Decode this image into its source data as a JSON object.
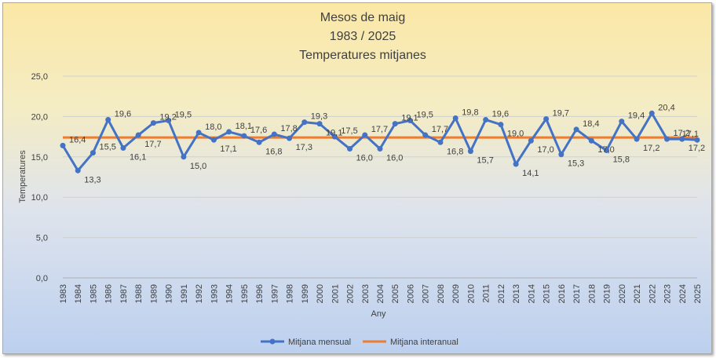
{
  "chart_data": {
    "type": "line",
    "title_lines": [
      "Mesos de maig",
      "1983 / 2025",
      "Temperatures mitjanes"
    ],
    "xlabel": "Any",
    "ylabel": "Temperatures",
    "ylim": [
      0,
      25
    ],
    "yticks": [
      "0,0",
      "5,0",
      "10,0",
      "15,0",
      "20,0",
      "25,0"
    ],
    "grid": true,
    "legend_position": "bottom",
    "categories": [
      "1983",
      "1984",
      "1985",
      "1986",
      "1987",
      "1988",
      "1989",
      "1990",
      "1991",
      "1992",
      "1993",
      "1994",
      "1995",
      "1996",
      "1997",
      "1998",
      "1999",
      "2000",
      "2001",
      "2002",
      "2003",
      "2004",
      "2005",
      "2006",
      "2007",
      "2008",
      "2009",
      "2010",
      "2011",
      "2012",
      "2013",
      "2014",
      "2015",
      "2016",
      "2017",
      "2018",
      "2019",
      "2020",
      "2021",
      "2022",
      "2023",
      "2024",
      "2025"
    ],
    "series": [
      {
        "name": "Mitjana mensual",
        "color": "#4472c4",
        "values": [
          16.4,
          13.3,
          15.5,
          19.6,
          16.1,
          17.7,
          19.2,
          19.5,
          15.0,
          18.0,
          17.1,
          18.1,
          17.6,
          16.8,
          17.8,
          17.3,
          19.3,
          19.1,
          17.5,
          16.0,
          17.7,
          16.0,
          19.1,
          19.5,
          17.7,
          16.8,
          19.8,
          15.7,
          19.6,
          19.0,
          14.1,
          17.0,
          19.7,
          15.3,
          18.4,
          17.0,
          15.8,
          19.4,
          17.2,
          20.4,
          17.2,
          17.2,
          17.1
        ],
        "labels": [
          "16,4",
          "13,3",
          "15,5",
          "19,6",
          "16,1",
          "17,7",
          "19,2",
          "19,5",
          "15,0",
          "18,0",
          "17,1",
          "18,1",
          "17,6",
          "16,8",
          "17,8",
          "17,3",
          "19,3",
          "19,1",
          "17,5",
          "16,0",
          "17,7",
          "16,0",
          "19,1",
          "19,5",
          "17,7",
          "16,8",
          "19,8",
          "15,7",
          "19,6",
          "19,0",
          "14,1",
          "17,0",
          "19,7",
          "15,3",
          "18,4",
          "17,0",
          "15,8",
          "19,4",
          "17,2",
          "20,4",
          "17,2",
          "17,2",
          "17,1"
        ]
      },
      {
        "name": "Mitjana interanual",
        "color": "#ed7d31",
        "values": [
          17.4,
          17.4,
          17.4,
          17.4,
          17.4,
          17.4,
          17.4,
          17.4,
          17.4,
          17.4,
          17.4,
          17.4,
          17.4,
          17.4,
          17.4,
          17.4,
          17.4,
          17.4,
          17.4,
          17.4,
          17.4,
          17.4,
          17.4,
          17.4,
          17.4,
          17.4,
          17.4,
          17.4,
          17.4,
          17.4,
          17.4,
          17.4,
          17.4,
          17.4,
          17.4,
          17.4,
          17.4,
          17.4,
          17.4,
          17.4,
          17.4,
          17.4,
          17.4
        ]
      }
    ]
  }
}
